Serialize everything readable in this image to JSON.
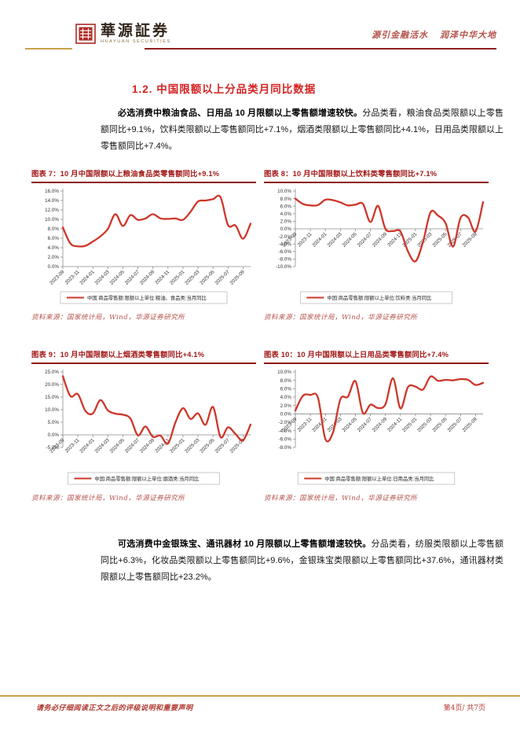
{
  "header": {
    "logo_cn": "華源証券",
    "logo_en": "HUAYUAN SECURITIES",
    "slogan": "源引金融活水 润泽中华大地"
  },
  "section": {
    "title": "1.2. 中国限额以上分品类月同比数据",
    "para1_bold": "必选消费中粮油食品、日用品 10 月限额以上零售额增速较快。",
    "para1_rest": "分品类看，粮油食品类限额以上零售额同比+9.1%，饮料类限额以上零售额同比+7.1%，烟酒类限额以上零售额同比+4.1%，日用品类限额以上零售额同比+7.4%。",
    "para2_bold": "可选消费中金银珠宝、通讯器材 10 月限额以上零售额增速较快。",
    "para2_rest": "分品类看，纺服类限额以上零售额同比+6.3%，化妆品类限额以上零售额同比+9.6%，金银珠宝类限额以上零售额同比+37.6%，通讯器材类限额以上零售额同比+23.2%。"
  },
  "source_note": "资料来源：国家统计局，Wind，华源证券研究所",
  "footer": {
    "disclaimer": "请务必仔细阅读正文之后的评级说明和重要声明",
    "page_info": "第4页/ 共7页"
  },
  "colors": {
    "line_red": "#cd372a",
    "fig_title_red": "#a31818",
    "heading_red": "#d42222",
    "gold": "#c8a24a",
    "rule_dark_red": "#8e1f1f",
    "source_red": "#b4524a",
    "axis_gray": "#8c8c8c",
    "tick_text": "#333333"
  },
  "chart_data": [
    {
      "type": "line",
      "title": "图表 7：10 月中国限额以上粮油食品类零售额同比+9.1%",
      "legend": "中国:商品零售额:限额以上单位:粮油、食品类:当月同比",
      "x": [
        "2023-09",
        "2023-10",
        "2023-11",
        "2023-12",
        "2024-01",
        "2024-02",
        "2024-03",
        "2024-04",
        "2024-05",
        "2024-06",
        "2024-07",
        "2024-08",
        "2024-09",
        "2024-10",
        "2024-11",
        "2024-12",
        "2025-01",
        "2025-02",
        "2025-03",
        "2025-04",
        "2025-05",
        "2025-06",
        "2025-07",
        "2025-08",
        "2025-09",
        "2025-10"
      ],
      "values": [
        8.3,
        4.9,
        4.3,
        4.4,
        5.3,
        6.4,
        8.0,
        11.1,
        8.6,
        10.9,
        9.9,
        10.2,
        11.1,
        10.2,
        10.1,
        10.2,
        9.9,
        11.6,
        13.8,
        14.0,
        14.3,
        14.7,
        8.8,
        8.7,
        5.9,
        9.1
      ],
      "xtick_labels": [
        "2023-09",
        "2023-11",
        "2024-01",
        "2024-03",
        "2024-05",
        "2024-07",
        "2024-09",
        "2024-11",
        "2025-01",
        "2025-03",
        "2025-05",
        "2025-07",
        "2025-09"
      ],
      "ylim": [
        0,
        16
      ],
      "ytick_step": 2,
      "grid": false,
      "legend_position": "bottom"
    },
    {
      "type": "line",
      "title": "图表 8：10 月中国限额以上饮料类零售额同比+7.1%",
      "legend": "中国:商品零售额:限额以上单位:饮料类:当月同比",
      "x": [
        "2023-09",
        "2023-10",
        "2023-11",
        "2023-12",
        "2024-01",
        "2024-02",
        "2024-03",
        "2024-04",
        "2024-05",
        "2024-06",
        "2024-07",
        "2024-08",
        "2024-09",
        "2024-10",
        "2024-11",
        "2024-12",
        "2025-01",
        "2025-02",
        "2025-03",
        "2025-04",
        "2025-05",
        "2025-06",
        "2025-07",
        "2025-08",
        "2025-09",
        "2025-10"
      ],
      "values": [
        8.0,
        6.6,
        6.2,
        6.3,
        7.7,
        7.6,
        7.0,
        6.2,
        6.4,
        6.6,
        1.8,
        6.1,
        0.0,
        -0.6,
        -0.7,
        -6.0,
        -8.6,
        -3.5,
        4.4,
        3.5,
        1.5,
        -4.7,
        2.9,
        3.0,
        -0.7,
        7.1
      ],
      "xtick_labels": [
        "2023-09",
        "2023-11",
        "2024-01",
        "2024-03",
        "2024-05",
        "2024-07",
        "2024-09",
        "2024-11",
        "2025-01",
        "2025-03",
        "2025-05",
        "2025-07",
        "2025-09"
      ],
      "ylim": [
        -10,
        10
      ],
      "ytick_step": 2,
      "grid": false,
      "legend_position": "bottom"
    },
    {
      "type": "line",
      "title": "图表 9：10 月中国限额以上烟酒类零售额同比+4.1%",
      "legend": "中国:商品零售额:限额以上单位:烟酒类:当月同比",
      "x": [
        "2023-09",
        "2023-10",
        "2023-11",
        "2023-12",
        "2024-01",
        "2024-02",
        "2024-03",
        "2024-04",
        "2024-05",
        "2024-06",
        "2024-07",
        "2024-08",
        "2024-09",
        "2024-10",
        "2024-11",
        "2024-12",
        "2025-01",
        "2025-02",
        "2025-03",
        "2025-04",
        "2025-05",
        "2025-06",
        "2025-07",
        "2025-08",
        "2025-09",
        "2025-10"
      ],
      "values": [
        23.3,
        15.4,
        16.2,
        9.5,
        8.5,
        13.8,
        9.7,
        8.4,
        8.0,
        6.5,
        -0.2,
        3.3,
        -0.8,
        -0.3,
        -3.5,
        5.0,
        10.6,
        6.3,
        8.5,
        4.0,
        11.1,
        -0.9,
        3.0,
        0.3,
        -2.2,
        4.1
      ],
      "xtick_labels": [
        "2023-09",
        "2023-11",
        "2024-01",
        "2024-03",
        "2024-05",
        "2024-07",
        "2024-09",
        "2024-11",
        "2025-01",
        "2025-03",
        "2025-05",
        "2025-07",
        "2025-09"
      ],
      "ylim": [
        -5,
        25
      ],
      "ytick_step": 5,
      "grid": false,
      "legend_position": "bottom"
    },
    {
      "type": "line",
      "title": "图表 10：10 月中国限额以上日用品类零售额同比+7.4%",
      "legend": "中国:商品零售额:限额以上单位:日用品类:当月同比",
      "x": [
        "2023-09",
        "2023-10",
        "2023-11",
        "2023-12",
        "2024-01",
        "2024-02",
        "2024-03",
        "2024-04",
        "2024-05",
        "2024-06",
        "2024-07",
        "2024-08",
        "2024-09",
        "2024-10",
        "2024-11",
        "2024-12",
        "2025-01",
        "2025-02",
        "2025-03",
        "2025-04",
        "2025-05",
        "2025-06",
        "2025-07",
        "2025-08",
        "2025-09",
        "2025-10"
      ],
      "values": [
        0.8,
        4.3,
        4.5,
        3.9,
        -6.0,
        -4.5,
        3.5,
        4.1,
        7.8,
        0.2,
        2.2,
        1.4,
        2.3,
        8.5,
        1.3,
        6.4,
        6.5,
        5.8,
        8.9,
        7.9,
        8.1,
        8.0,
        8.3,
        8.1,
        6.9,
        7.4
      ],
      "xtick_labels": [
        "2023-09",
        "2023-11",
        "2024-01",
        "2024-03",
        "2024-05",
        "2024-07",
        "2024-09",
        "2024-11",
        "2025-01",
        "2025-03",
        "2025-05",
        "2025-07",
        "2025-09"
      ],
      "ylim": [
        -8,
        10
      ],
      "ytick_step": 2,
      "grid": false,
      "legend_position": "bottom"
    }
  ]
}
